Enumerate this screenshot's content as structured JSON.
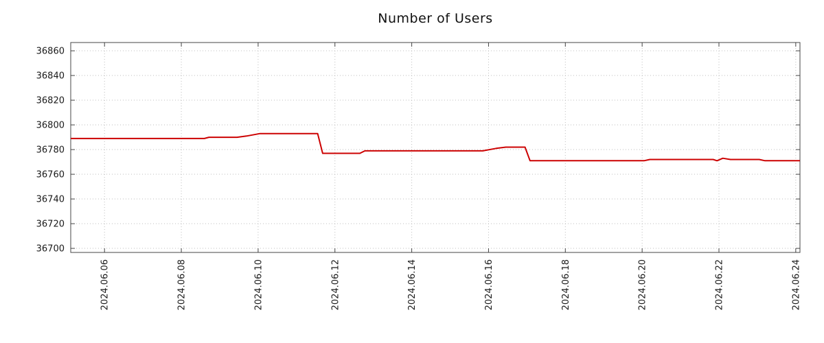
{
  "chart_data": {
    "type": "line",
    "title": "Number of Users",
    "xlabel": "",
    "ylabel": "",
    "grid": true,
    "legend": "none",
    "line_color": "#cc0000",
    "grid_color": "#bdbdbd",
    "border_color": "#444444",
    "x_domain_days": [
      5.12,
      24.11
    ],
    "ylim": [
      36696.7,
      36866.7
    ],
    "y_ticks": [
      36700,
      36720,
      36740,
      36760,
      36780,
      36800,
      36820,
      36840,
      36860
    ],
    "x_ticks": {
      "labels": [
        "2024.06.06",
        "2024.06.08",
        "2024.06.10",
        "2024.06.12",
        "2024.06.14",
        "2024.06.16",
        "2024.06.18",
        "2024.06.20",
        "2024.06.22",
        "2024.06.24"
      ],
      "days": [
        6,
        8,
        10,
        12,
        14,
        16,
        18,
        20,
        22,
        24
      ]
    },
    "series": [
      {
        "name": "Number of Users",
        "color": "#cc0000",
        "points_day_value": [
          [
            5.12,
            36789
          ],
          [
            8.6,
            36789
          ],
          [
            8.72,
            36790
          ],
          [
            9.45,
            36790
          ],
          [
            9.7,
            36791
          ],
          [
            10.05,
            36793
          ],
          [
            11.55,
            36793
          ],
          [
            11.68,
            36777
          ],
          [
            12.65,
            36777
          ],
          [
            12.78,
            36779
          ],
          [
            15.85,
            36779
          ],
          [
            16.2,
            36781
          ],
          [
            16.45,
            36782
          ],
          [
            16.95,
            36782
          ],
          [
            17.08,
            36771
          ],
          [
            20.05,
            36771
          ],
          [
            20.2,
            36772
          ],
          [
            21.85,
            36772
          ],
          [
            21.95,
            36771
          ],
          [
            22.1,
            36773
          ],
          [
            22.3,
            36772
          ],
          [
            23.05,
            36772
          ],
          [
            23.2,
            36771
          ],
          [
            24.11,
            36771
          ]
        ]
      }
    ]
  }
}
